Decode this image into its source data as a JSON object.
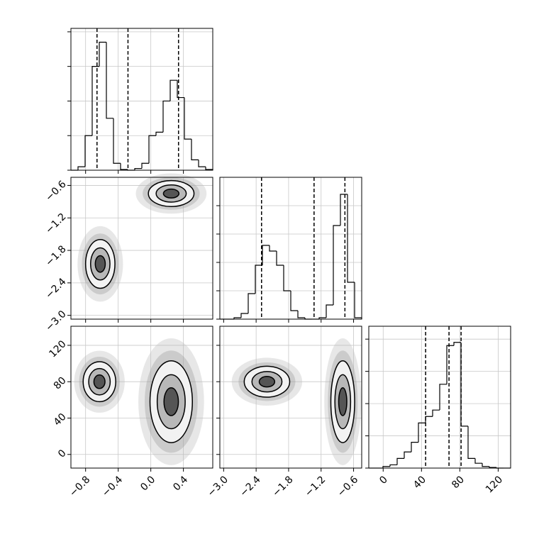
{
  "chart_data": [
    {
      "type": "histogram",
      "xlim": [
        -0.98,
        0.76
      ],
      "ylim": [
        0,
        4.1
      ],
      "bins": [
        -0.98,
        -0.893,
        -0.806,
        -0.719,
        -0.632,
        -0.545,
        -0.458,
        -0.371,
        -0.284,
        -0.197,
        -0.11,
        -0.023,
        0.064,
        0.151,
        0.238,
        0.325,
        0.412,
        0.499,
        0.586,
        0.673,
        0.76
      ],
      "counts": [
        0,
        0.1,
        1.0,
        3.0,
        3.7,
        1.5,
        0.2,
        0.02,
        0,
        0.05,
        0.2,
        1.0,
        1.1,
        2.0,
        2.6,
        2.1,
        0.9,
        0.3,
        0.1,
        0.02
      ],
      "quantiles": [
        -0.66,
        -0.28,
        0.34
      ],
      "xticks": [
        -0.8,
        -0.4,
        0.0,
        0.4
      ],
      "yticks": [
        0,
        1,
        2,
        3,
        4
      ],
      "grid": true,
      "show_xlabels": false,
      "show_ylabels": false
    },
    {
      "type": "contour",
      "xlim": [
        -0.98,
        0.76
      ],
      "ylim": [
        -3.07,
        -0.45
      ],
      "blobs": [
        {
          "x": -0.62,
          "y": -2.05,
          "rx": 0.18,
          "ry": 0.45
        },
        {
          "x": 0.25,
          "y": -0.75,
          "rx": 0.28,
          "ry": 0.24
        }
      ],
      "levels": [
        1,
        0.66,
        0.34
      ],
      "xticks": [
        -0.8,
        -0.4,
        0.0,
        0.4
      ],
      "yticks": [
        {
          "value": -0.6,
          "label": "−0.6"
        },
        {
          "value": -1.2,
          "label": "−1.2"
        },
        {
          "value": -1.8,
          "label": "−1.8"
        },
        {
          "value": -2.4,
          "label": "−2.4"
        },
        {
          "value": -3.0,
          "label": "−3.0"
        }
      ],
      "grid": true,
      "show_xlabels": false,
      "show_ylabels": true
    },
    {
      "type": "histogram",
      "xlim": [
        -3.07,
        -0.45
      ],
      "ylim": [
        0,
        5
      ],
      "bins": [
        -3.07,
        -2.939,
        -2.808,
        -2.677,
        -2.546,
        -2.415,
        -2.284,
        -2.153,
        -2.022,
        -1.891,
        -1.76,
        -1.629,
        -1.498,
        -1.367,
        -1.236,
        -1.105,
        -0.974,
        -0.843,
        -0.712,
        -0.581,
        -0.45
      ],
      "counts": [
        0,
        0,
        0.05,
        0.2,
        0.9,
        1.9,
        2.6,
        2.4,
        1.9,
        1.0,
        0.3,
        0.05,
        0,
        0,
        0.05,
        0.5,
        3.3,
        4.4,
        1.3,
        0.05
      ],
      "quantiles": [
        -2.3,
        -1.33,
        -0.76
      ],
      "xticks": [
        -3.0,
        -2.4,
        -1.8,
        -1.2,
        -0.6
      ],
      "yticks": [
        0,
        1,
        2,
        3,
        4
      ],
      "grid": true,
      "show_xlabels": false,
      "show_ylabels": false
    },
    {
      "type": "contour",
      "xlim": [
        -0.98,
        0.76
      ],
      "ylim": [
        -15,
        141
      ],
      "blobs": [
        {
          "x": -0.63,
          "y": 80,
          "rx": 0.2,
          "ry": 22
        },
        {
          "x": 0.25,
          "y": 58,
          "rx": 0.26,
          "ry": 45
        }
      ],
      "levels": [
        1,
        0.66,
        0.34
      ],
      "xticks": [
        {
          "value": -0.8,
          "label": "−0.8"
        },
        {
          "value": -0.4,
          "label": "−0.4"
        },
        {
          "value": 0.0,
          "label": "0.0"
        },
        {
          "value": 0.4,
          "label": "0.4"
        }
      ],
      "yticks": [
        0,
        40,
        80,
        120
      ],
      "grid": true,
      "show_xlabels": true,
      "show_ylabels": true
    },
    {
      "type": "contour",
      "xlim": [
        -3.07,
        -0.45
      ],
      "ylim": [
        -15,
        141
      ],
      "blobs": [
        {
          "x": -2.2,
          "y": 80,
          "rx": 0.42,
          "ry": 17
        },
        {
          "x": -0.8,
          "y": 58,
          "rx": 0.22,
          "ry": 45
        }
      ],
      "levels": [
        1,
        0.66,
        0.34
      ],
      "xticks": [
        {
          "value": -3.0,
          "label": "−3.0"
        },
        {
          "value": -2.4,
          "label": "−2.4"
        },
        {
          "value": -1.8,
          "label": "−1.8"
        },
        {
          "value": -1.2,
          "label": "−1.2"
        },
        {
          "value": -0.6,
          "label": "−0.6"
        }
      ],
      "yticks": [
        0,
        40,
        80,
        120
      ],
      "grid": true,
      "show_xlabels": true,
      "show_ylabels": false
    },
    {
      "type": "histogram",
      "xlim": [
        -15,
        133
      ],
      "ylim": [
        0,
        4.4
      ],
      "bins": [
        -15,
        -7.6,
        -0.2,
        7.2,
        14.6,
        22,
        29.4,
        36.8,
        44.2,
        51.6,
        59,
        66.4,
        73.8,
        81.2,
        88.6,
        96,
        103.4,
        110.8,
        118.2,
        125.6,
        133
      ],
      "counts": [
        0,
        0,
        0.05,
        0.1,
        0.3,
        0.5,
        0.8,
        1.4,
        1.6,
        1.8,
        2.6,
        3.8,
        3.9,
        1.3,
        0.3,
        0.15,
        0.05,
        0.02,
        0,
        0
      ],
      "quantiles": [
        44.3,
        68.7,
        81.3
      ],
      "xticks": [
        0,
        40,
        80,
        120
      ],
      "yticks": [
        0,
        1,
        2,
        3,
        4
      ],
      "grid": true,
      "show_xlabels": true,
      "show_ylabels": false
    }
  ]
}
